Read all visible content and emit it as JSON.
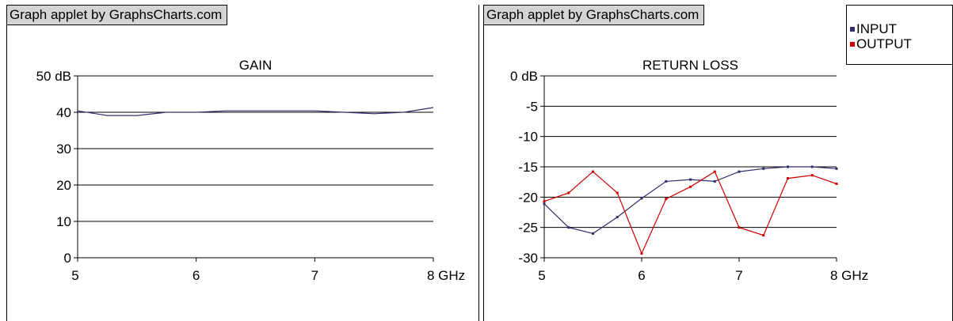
{
  "credit": "Graph applet by GraphsCharts.com",
  "chart_data": [
    {
      "type": "line",
      "title": "GAIN",
      "x": [
        5,
        5.25,
        5.5,
        5.75,
        6,
        6.25,
        6.5,
        6.75,
        7,
        7.25,
        7.5,
        7.75,
        8
      ],
      "series": [
        {
          "values": [
            40.4,
            39.1,
            39.1,
            40,
            40,
            40.4,
            40.4,
            40.4,
            40.4,
            40,
            39.6,
            40,
            41.3
          ],
          "color": "#2e2e6e"
        }
      ],
      "xlim": [
        5,
        8
      ],
      "ylim": [
        0,
        50
      ],
      "x_ticks": [
        5,
        6,
        7,
        8
      ],
      "x_tick_labels": [
        "5",
        "6",
        "7",
        "8 GHz"
      ],
      "y_ticks": [
        0,
        10,
        20,
        30,
        40,
        50
      ],
      "y_tick_labels": [
        "0",
        "10",
        "20",
        "30",
        "40",
        "50 dB"
      ],
      "grid": "horizontal",
      "show_markers": false
    },
    {
      "type": "line",
      "title": "RETURN LOSS",
      "x": [
        5,
        5.25,
        5.5,
        5.75,
        6,
        6.25,
        6.5,
        6.75,
        7,
        7.25,
        7.5,
        7.75,
        8
      ],
      "series": [
        {
          "name": "INPUT",
          "values": [
            -21.1,
            -25,
            -26,
            -23.3,
            -20.2,
            -17.4,
            -17.1,
            -17.4,
            -15.8,
            -15.3,
            -15,
            -15,
            -15.3
          ],
          "color": "#2e2e6e"
        },
        {
          "name": "OUTPUT",
          "values": [
            -20.7,
            -19.3,
            -15.8,
            -19.3,
            -29.3,
            -20.3,
            -18.3,
            -15.8,
            -25,
            -26.3,
            -16.9,
            -16.4,
            -17.8
          ],
          "color": "#cc0000"
        }
      ],
      "xlim": [
        5,
        8
      ],
      "ylim": [
        -30,
        0
      ],
      "x_ticks": [
        5,
        6,
        7,
        8
      ],
      "x_tick_labels": [
        "5",
        "6",
        "7",
        "8 GHz"
      ],
      "y_ticks": [
        0,
        -5,
        -10,
        -15,
        -20,
        -25,
        -30
      ],
      "y_tick_labels": [
        "0 dB",
        "-5",
        "-10",
        "-15",
        "-20",
        "-25",
        "-30"
      ],
      "grid": "horizontal",
      "legend": "top-right",
      "show_markers": true
    }
  ]
}
